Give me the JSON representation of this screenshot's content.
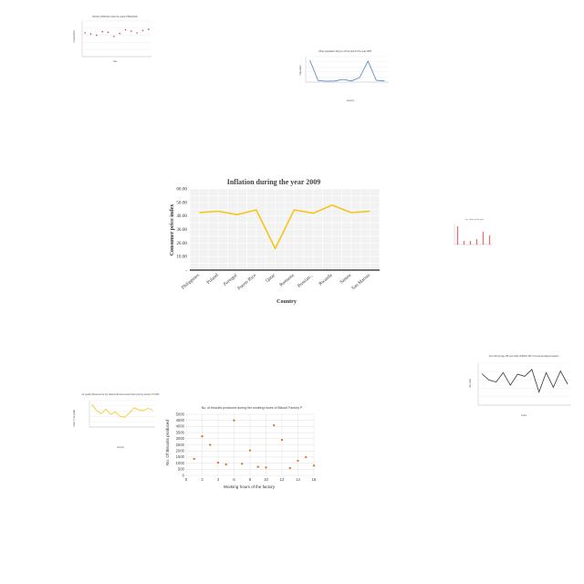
{
  "chart_data": [
    {
      "type": "line",
      "title": "Inflation during the year 2009",
      "xlabel": "Country",
      "ylabel": "Consumer price index",
      "categories": [
        "Philippines",
        "Poland",
        "Portugal",
        "Puerto Rico",
        "Qatar",
        "Romania",
        "Russian...",
        "Rwanda",
        "Samoa",
        "San Marino"
      ],
      "series": [
        {
          "values": [
            42.5,
            43.5,
            41.0,
            44.5,
            16.0,
            44.5,
            42.0,
            48.0,
            42.5,
            43.5
          ]
        }
      ],
      "ylim": [
        0,
        60
      ],
      "yticks": [
        "-",
        "10.00",
        "20.00",
        "30.00",
        "40.00",
        "50.00",
        "60.00"
      ],
      "grid": true,
      "colors": {
        "line": "#f5c518"
      }
    },
    {
      "type": "scatter",
      "title": "No. of biscuits produced during the working hours of Biscuit Factory P",
      "xlabel": "Working hours of the factory",
      "ylabel": "No. Of Biscuits produced",
      "x": [
        1,
        2,
        3,
        4,
        5,
        6,
        7,
        8,
        9,
        10,
        11,
        12,
        13,
        14,
        15,
        16
      ],
      "y": [
        1350,
        3200,
        2500,
        1050,
        900,
        4500,
        950,
        2050,
        700,
        650,
        4100,
        2900,
        600,
        1200,
        1500,
        800
      ],
      "xlim": [
        0,
        16
      ],
      "ylim": [
        0,
        5000
      ],
      "xticks": [
        "0",
        "2",
        "4",
        "6",
        "8",
        "10",
        "12",
        "14",
        "16"
      ],
      "yticks": [
        "0",
        "500",
        "1000",
        "1500",
        "2000",
        "2500",
        "3000",
        "3500",
        "4000",
        "4500",
        "5000"
      ],
      "grid": true,
      "colors": {
        "marker": "#e8732c"
      }
    },
    {
      "type": "line",
      "title": "Urban population living in oil hot peat for the year 2005",
      "xlabel": "Country",
      "ylabel": "Population",
      "series": [
        {
          "values": [
            120,
            8,
            5,
            6,
            15,
            6,
            25,
            115,
            10,
            6
          ]
        }
      ],
      "ylim": [
        0,
        140
      ],
      "grid": true,
      "colors": {
        "line": "#4a7ec4"
      }
    },
    {
      "type": "line",
      "title": "Sex ratio by age (25 year olds) (1000/F, 2017) in less developed regions",
      "xlabel": "Years",
      "ylabel": "Sex ratio",
      "series": [
        {
          "values": [
            80,
            68,
            64,
            82,
            58,
            79,
            75,
            88,
            45,
            82,
            54,
            85,
            60
          ]
        }
      ],
      "ylim": [
        20,
        100
      ],
      "grid": true,
      "colors": {
        "line": "#333333"
      }
    },
    {
      "type": "line",
      "title": "Air quality (Measured by the National Environmental Index) during January 15 1960",
      "xlabel": "Country",
      "ylabel": "Index of air quality",
      "series": [
        {
          "values": [
            95,
            70,
            55,
            75,
            52,
            63,
            45,
            40,
            58,
            80,
            72,
            68,
            78,
            70
          ]
        }
      ],
      "ylim": [
        0,
        110
      ],
      "grid": true,
      "colors": {
        "line": "#f5c518"
      }
    },
    {
      "type": "scatter",
      "title": "Number of Biscuits under the years of Manufactu",
      "xlabel": "Year",
      "ylabel": "Consumption",
      "series": [
        {
          "values": [
            4,
            3.8,
            3.6,
            4.2,
            4.1,
            3.4,
            3.9,
            4.5,
            4.3,
            4.0,
            4.4,
            4.6
          ]
        }
      ],
      "ylim": [
        0,
        6
      ],
      "grid": true,
      "colors": {
        "marker": "#d23c50"
      }
    },
    {
      "type": "bar",
      "title": "Ins. share of the year",
      "series": [
        {
          "values": [
            9,
            2,
            2,
            3,
            6,
            4
          ]
        }
      ],
      "ylim": [
        0,
        10
      ],
      "colors": {
        "marker": "#d9252b"
      }
    }
  ]
}
